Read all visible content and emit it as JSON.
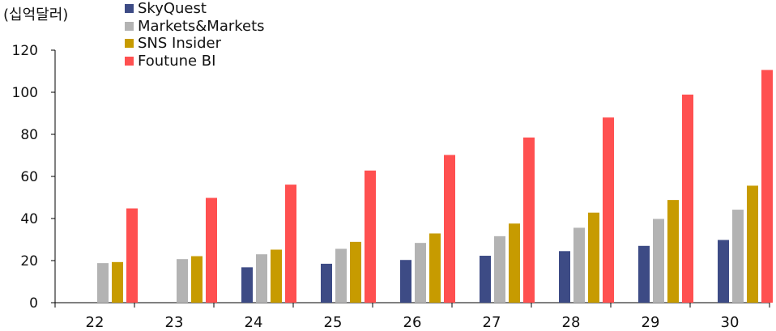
{
  "chart_data": {
    "type": "bar",
    "unit_label": "(십억달러)",
    "categories": [
      "22",
      "23",
      "24",
      "25",
      "26",
      "27",
      "28",
      "29",
      "30"
    ],
    "ylim": [
      0,
      120
    ],
    "yticks": [
      "0",
      "20",
      "40",
      "60",
      "80",
      "100",
      "120"
    ],
    "ytick_values": [
      0,
      20,
      40,
      60,
      80,
      100,
      120
    ],
    "legend_position": "top-left",
    "grid": false,
    "series": [
      {
        "name": "SkyQuest",
        "color": "#3d4b85",
        "values": [
          null,
          null,
          16.8,
          18.5,
          20.3,
          22.3,
          24.5,
          27.0,
          29.8
        ]
      },
      {
        "name": "Markets&Markets",
        "color": "#b3b3b3",
        "values": [
          18.8,
          20.7,
          23.0,
          25.6,
          28.4,
          31.6,
          35.6,
          39.8,
          44.2
        ]
      },
      {
        "name": "SNS Insider",
        "color": "#c79b00",
        "values": [
          19.3,
          22.1,
          25.2,
          28.9,
          32.9,
          37.6,
          42.8,
          48.8,
          55.6
        ]
      },
      {
        "name": "Foutune BI",
        "color": "#ff5050",
        "values": [
          44.8,
          49.8,
          56.1,
          62.8,
          70.2,
          78.5,
          88.0,
          98.9,
          110.6
        ]
      }
    ]
  }
}
